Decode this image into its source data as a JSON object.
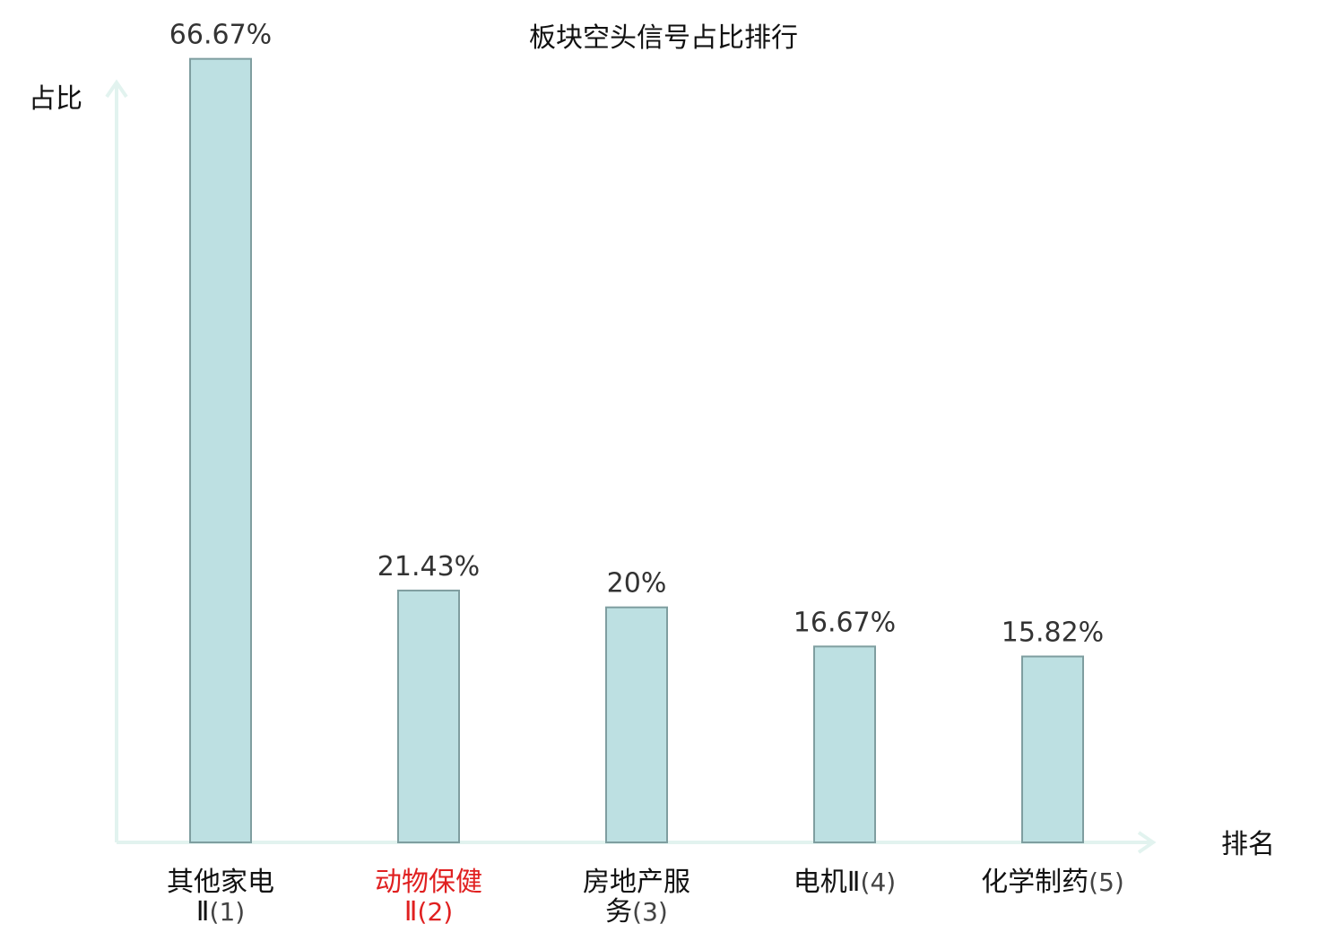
{
  "chart_data": {
    "type": "bar",
    "title": "板块空头信号占比排行",
    "ylabel": "占比",
    "xlabel": "排名",
    "ylim": [
      0,
      70
    ],
    "grid": false,
    "categories": [
      {
        "name": "其他家电Ⅱ",
        "rank": "(1)",
        "lines": [
          "其他家电",
          "Ⅱ(1)"
        ],
        "highlight": false
      },
      {
        "name": "动物保健Ⅱ",
        "rank": "(2)",
        "lines": [
          "动物保健",
          "Ⅱ(2)"
        ],
        "highlight": true
      },
      {
        "name": "房地产服务",
        "rank": "(3)",
        "lines": [
          "房地产服",
          "务(3)"
        ],
        "highlight": false
      },
      {
        "name": "电机Ⅱ",
        "rank": "(4)",
        "lines": [
          "电机Ⅱ(4)"
        ],
        "highlight": false
      },
      {
        "name": "化学制药",
        "rank": "(5)",
        "lines": [
          "化学制药(5)"
        ],
        "highlight": false
      }
    ],
    "values": [
      66.67,
      21.43,
      20,
      16.67,
      15.82
    ],
    "value_labels": [
      "66.67%",
      "21.43%",
      "20%",
      "16.67%",
      "15.82%"
    ],
    "colors": {
      "bar_fill": "#bde0e2",
      "bar_stroke": "#7f9ea0",
      "axis": "#e2f3ef",
      "highlight_text": "#e02020",
      "normal_text": "#111111",
      "rank_text": "#444444"
    }
  }
}
